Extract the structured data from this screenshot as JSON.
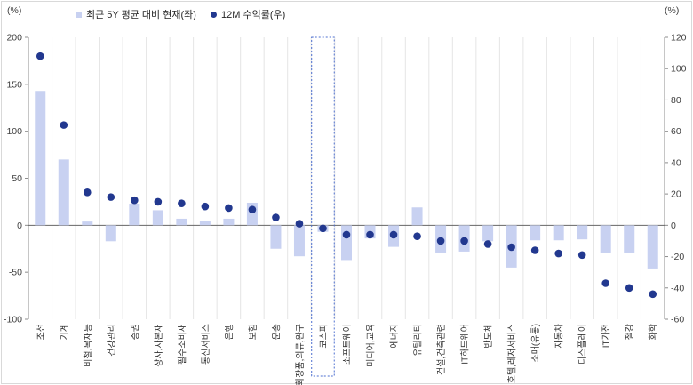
{
  "chart_data": {
    "type": "bar",
    "title": "",
    "categories": [
      "조선",
      "기계",
      "비철,목재등",
      "건강관리",
      "증권",
      "상사,자본재",
      "필수소비재",
      "통신서비스",
      "은행",
      "보험",
      "운송",
      "화장품,의류,완구",
      "코스피",
      "소프트웨어",
      "미디어,교육",
      "에너지",
      "유틸리티",
      "건설,건축관련",
      "IT하드웨어",
      "반도체",
      "호텔,레저서비스",
      "소매(유통)",
      "자동차",
      "디스플레이",
      "IT가전",
      "철강",
      "화학"
    ],
    "series": [
      {
        "name": "최근 5Y 평균 대비 현재(좌)",
        "type": "bar",
        "axis": "left",
        "values": [
          143,
          70,
          4,
          -17,
          23,
          16,
          7,
          5,
          7,
          24,
          -25,
          -33,
          -7,
          -37,
          -14,
          -23,
          19,
          -29,
          -28,
          -17,
          -45,
          -16,
          -16,
          -15,
          -29,
          -29,
          -46
        ]
      },
      {
        "name": "12M 수익률(우)",
        "type": "scatter",
        "axis": "right",
        "values": [
          108,
          64,
          21,
          18,
          16,
          15,
          14,
          12,
          11,
          10,
          5,
          1,
          -2,
          -6,
          -6,
          -6,
          -7,
          -10,
          -10,
          -12,
          -14,
          -16,
          -18,
          -19,
          -37,
          -40,
          -44
        ]
      }
    ],
    "left_axis": {
      "unit": "(%)",
      "ticks": [
        200,
        150,
        100,
        50,
        0,
        -50,
        -100
      ],
      "range": [
        -100,
        200
      ]
    },
    "right_axis": {
      "unit": "(%)",
      "ticks": [
        120,
        100,
        80,
        60,
        40,
        20,
        0,
        -20,
        -40,
        -60
      ],
      "range": [
        -60,
        120
      ]
    },
    "highlight": {
      "category": "코스피"
    },
    "grid": "vertical-only",
    "legend_position": "top",
    "colors": {
      "bar": "#c8d1f1",
      "dot": "#22388f",
      "highlight_border": "#4d6fd0",
      "grid": "#e5e5e5",
      "axis": "#8c8c8c",
      "zero_line": "#666666",
      "tick_text": "#404040",
      "category_text": "#333333"
    }
  },
  "legend": {
    "bar_label": "최근 5Y 평균 대비 현재(좌)",
    "dot_label": "12M 수익률(우)"
  },
  "axis_unit_left": "(%)",
  "axis_unit_right": "(%)"
}
